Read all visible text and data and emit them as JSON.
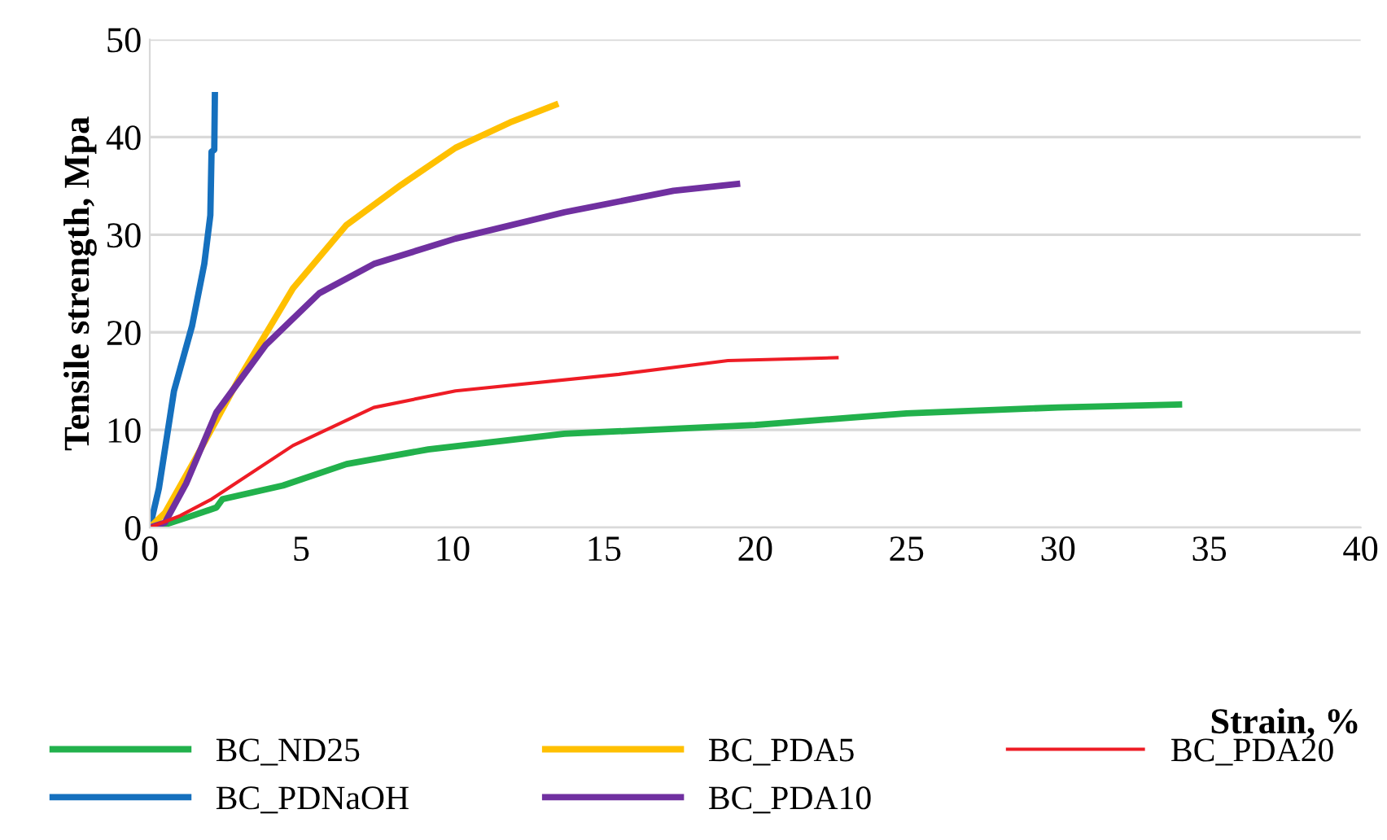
{
  "chart_data": {
    "type": "line",
    "xlabel": "Strain, %",
    "ylabel": "Tensile strength, Mpa",
    "xlim": [
      0,
      40
    ],
    "xticks": [
      0,
      5,
      10,
      15,
      20,
      25,
      30,
      35,
      40
    ],
    "ylim": [
      0,
      50
    ],
    "yticks": [
      0,
      10,
      20,
      30,
      40,
      50
    ],
    "grid": "y",
    "legend": "bottom",
    "marker": "none",
    "line_style": "solid",
    "series": [
      {
        "name": "BC_ND25",
        "color": "#22b14c",
        "x": [
          0,
          0.2,
          1.2,
          2.2,
          2.4,
          4.4,
          6.5,
          9.2,
          13.7,
          20,
          25,
          30,
          34
        ],
        "values": [
          0,
          0,
          1,
          2.05,
          2.9,
          4.3,
          6.5,
          8,
          9.6,
          10.5,
          11.7,
          12.3,
          12.6
        ]
      },
      {
        "name": "BC_PDNaOH",
        "color": "#1570be",
        "x": [
          0,
          0.3,
          0.8,
          1.4,
          1.8,
          2.0,
          2.04,
          2.13,
          2.15
        ],
        "values": [
          0,
          4,
          14,
          20.7,
          27,
          32,
          38.5,
          38.7,
          44.3
        ]
      },
      {
        "name": "BC_PDA5",
        "color": "#ffc000",
        "x": [
          0,
          0.5,
          1.5,
          2.94,
          4.73,
          6.5,
          8.3,
          10.1,
          11.9,
          13.4
        ],
        "values": [
          0,
          1.5,
          7,
          15.2,
          24.5,
          31,
          35.1,
          38.9,
          41.5,
          43.3
        ]
      },
      {
        "name": "BC_PDA10",
        "color": "#7030a0",
        "x": [
          0,
          0.5,
          1.2,
          2.2,
          3.83,
          5.6,
          7.4,
          10.1,
          13.7,
          17.3,
          19.4
        ],
        "values": [
          0,
          0.5,
          4.5,
          11.8,
          18.7,
          24,
          27,
          29.6,
          32.3,
          34.5,
          35.2
        ]
      },
      {
        "name": "BC_PDA20",
        "color": "#ee1c25",
        "x": [
          0,
          1,
          2.04,
          4.73,
          7.4,
          10.1,
          15.5,
          19.1,
          22.7
        ],
        "values": [
          0,
          1.2,
          2.9,
          8.4,
          12.3,
          14,
          15.7,
          17.1,
          17.4
        ]
      }
    ]
  }
}
